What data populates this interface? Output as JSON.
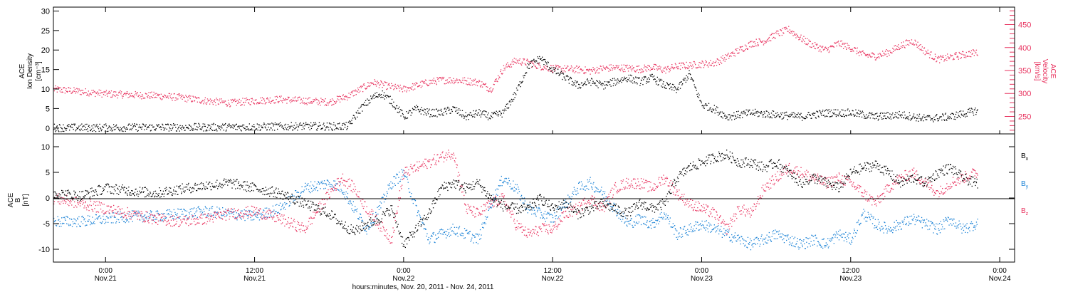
{
  "x_axis": {
    "title": "hours:minutes, Nov. 20, 2011 - Nov. 24, 2011",
    "ticks": [
      {
        "t": 0,
        "time": "0:00",
        "date": "Nov.21"
      },
      {
        "t": 12,
        "time": "12:00",
        "date": "Nov.21"
      },
      {
        "t": 24,
        "time": "0:00",
        "date": "Nov.22"
      },
      {
        "t": 36,
        "time": "12:00",
        "date": "Nov.22"
      },
      {
        "t": 48,
        "time": "0:00",
        "date": "Nov.23"
      },
      {
        "t": 60,
        "time": "12:00",
        "date": "Nov.23"
      },
      {
        "t": 72,
        "time": "0:00",
        "date": "Nov.24"
      }
    ],
    "range_hours_from_nov21": [
      -4.2,
      73.2
    ]
  },
  "chart_data": [
    {
      "type": "scatter",
      "panel": "top",
      "ylabel_left": [
        "ACE",
        "Ion Density",
        "[cm⁻³]"
      ],
      "ylabel_right": [
        "ACE",
        "Velocity",
        "[km/s]"
      ],
      "ylim_left": [
        -1.5,
        31
      ],
      "yticks_left": [
        0,
        5,
        10,
        15,
        20,
        25,
        30
      ],
      "ylim_right": [
        212,
        488
      ],
      "yticks_right": [
        250,
        300,
        350,
        400,
        450
      ],
      "series": [
        {
          "axis": "left",
          "color": "#000000",
          "x": [
            -4.2,
            -2,
            0,
            4,
            8,
            12,
            14,
            16,
            18,
            19.5,
            20.5,
            21.5,
            22.2,
            23,
            24,
            25,
            26,
            27,
            28,
            29,
            30,
            31,
            32,
            33,
            34,
            35,
            36,
            37,
            38,
            39,
            40,
            41,
            42,
            43,
            44,
            45,
            46,
            47,
            48,
            49,
            50,
            52,
            54,
            56,
            58,
            60,
            62,
            64,
            66,
            68,
            70
          ],
          "values": [
            0.2,
            0.2,
            0.2,
            0.3,
            0.3,
            0.4,
            0.5,
            0.6,
            0.5,
            0.6,
            5,
            8,
            9,
            7,
            3,
            5,
            4,
            4,
            5,
            3,
            4,
            3,
            4,
            9,
            16,
            18,
            15,
            13,
            11,
            12,
            11,
            12,
            13,
            12,
            13,
            11,
            10,
            14,
            6,
            5,
            3,
            4,
            3.5,
            3,
            4,
            4,
            3,
            3.5,
            2.5,
            3,
            4.5
          ]
        },
        {
          "axis": "right",
          "color": "#e8335f",
          "x": [
            -4.2,
            -2,
            0,
            2,
            4,
            6,
            8,
            10,
            12,
            14,
            16,
            18,
            19.5,
            20.5,
            21.5,
            22.2,
            23,
            24,
            25,
            26,
            27,
            28,
            29,
            30,
            31,
            32,
            33,
            34,
            35,
            36,
            37,
            38,
            39,
            40,
            41,
            42,
            43,
            44,
            45,
            46,
            47,
            48,
            49,
            50,
            51,
            52,
            53,
            54,
            55,
            56,
            57,
            58,
            59,
            60,
            61,
            62,
            63,
            64,
            65,
            66,
            67,
            68,
            69,
            70
          ],
          "values": [
            310,
            305,
            300,
            298,
            296,
            292,
            285,
            280,
            285,
            288,
            285,
            282,
            295,
            310,
            325,
            320,
            315,
            310,
            318,
            325,
            330,
            330,
            328,
            325,
            310,
            355,
            372,
            368,
            360,
            355,
            354,
            353,
            350,
            355,
            357,
            356,
            354,
            358,
            352,
            360,
            362,
            365,
            367,
            380,
            395,
            410,
            415,
            430,
            440,
            420,
            405,
            395,
            410,
            400,
            385,
            382,
            390,
            405,
            415,
            392,
            375,
            380,
            385,
            390
          ]
        }
      ]
    },
    {
      "type": "scatter",
      "panel": "bottom",
      "ylabel_left": [
        "ACE",
        "B",
        "[nT]"
      ],
      "ylim": [
        -12.5,
        12.5
      ],
      "yticks": [
        -10,
        -5,
        0,
        5,
        10
      ],
      "legend_position": "right",
      "series": [
        {
          "name": "Bx",
          "legend_main": "B",
          "legend_sub": "x",
          "color": "#000000",
          "x": [
            -4.2,
            -2,
            0,
            2,
            4,
            6,
            8,
            10,
            12,
            14,
            16,
            18,
            19,
            20,
            21,
            22,
            23,
            24,
            25,
            26,
            27,
            28,
            29,
            30,
            31,
            32,
            33,
            34,
            35,
            36,
            37,
            38,
            39,
            40,
            41,
            42,
            43,
            44,
            45,
            46,
            47,
            48,
            49,
            50,
            51,
            52,
            53,
            54,
            55,
            56,
            57,
            58,
            59,
            60,
            61,
            62,
            63,
            64,
            65,
            66,
            67,
            68,
            69,
            70
          ],
          "values": [
            1,
            0.5,
            2,
            1.5,
            1,
            1.8,
            2.5,
            3,
            2,
            1,
            -1,
            -3,
            -5,
            -6.5,
            -5,
            -4,
            -2,
            -9,
            -6,
            -3,
            2,
            3,
            2,
            3,
            0,
            -1.5,
            -2,
            -2,
            0,
            -2,
            -1,
            -3,
            -2,
            -1,
            -2,
            -3,
            -1,
            -2,
            -1,
            4,
            6,
            7,
            8,
            8.5,
            7,
            7,
            6,
            7,
            5,
            3,
            4,
            3,
            2,
            5,
            6,
            6.5,
            5,
            3,
            4,
            3,
            5,
            6,
            4,
            3
          ]
        },
        {
          "name": "By",
          "legend_main": "B",
          "legend_sub": "y",
          "color": "#1a82d6",
          "x": [
            -4.2,
            -2,
            0,
            2,
            4,
            6,
            8,
            10,
            12,
            14,
            16,
            18,
            19,
            20,
            21,
            22,
            23,
            24,
            25,
            26,
            27,
            28,
            29,
            30,
            31,
            32,
            33,
            34,
            35,
            36,
            37,
            38,
            39,
            40,
            41,
            42,
            43,
            44,
            45,
            46,
            47,
            48,
            49,
            50,
            51,
            52,
            53,
            54,
            55,
            56,
            57,
            58,
            59,
            60,
            61,
            62,
            63,
            64,
            65,
            66,
            67,
            68,
            69,
            70
          ],
          "values": [
            -4.5,
            -4.5,
            -4,
            -3.5,
            -3.5,
            -3,
            -2.5,
            -3,
            -3.5,
            -2,
            2,
            3,
            2,
            -2,
            -6,
            -2,
            3,
            5,
            -2,
            -8,
            -7,
            -6,
            -7,
            -8,
            -1,
            4,
            2,
            -2,
            -3,
            -4,
            -1,
            2,
            3,
            1,
            -2,
            -5,
            -4,
            -5,
            -3,
            -7,
            -6,
            -5,
            -6,
            -7,
            -8,
            -9,
            -8,
            -7,
            -8,
            -9,
            -8,
            -9,
            -7,
            -8,
            -3,
            -5,
            -6,
            -5,
            -4,
            -5,
            -6,
            -4,
            -6,
            -5
          ]
        },
        {
          "name": "Bz",
          "legend_main": "B",
          "legend_sub": "z",
          "color": "#e8335f",
          "x": [
            -4.2,
            -2,
            0,
            2,
            4,
            6,
            8,
            10,
            12,
            14,
            16,
            18,
            19,
            20,
            21,
            22,
            23,
            24,
            25,
            26,
            27,
            28,
            29,
            30,
            31,
            32,
            33,
            34,
            35,
            36,
            37,
            38,
            39,
            40,
            41,
            42,
            43,
            44,
            45,
            46,
            47,
            48,
            49,
            50,
            51,
            52,
            53,
            54,
            55,
            56,
            57,
            58,
            59,
            60,
            61,
            62,
            63,
            64,
            65,
            66,
            67,
            68,
            69,
            70
          ],
          "values": [
            0,
            -1,
            -2,
            -3,
            -4,
            -4.5,
            -4,
            -3,
            -2.5,
            -4,
            -6,
            1,
            4,
            2,
            -2,
            -5,
            -8,
            5,
            6,
            7,
            8,
            9,
            -2,
            -3,
            -1,
            0,
            -5,
            -7,
            -6,
            -6,
            -3,
            -2,
            0,
            -2,
            2,
            3,
            3,
            2,
            4,
            1,
            -1,
            -2,
            -3,
            -6,
            -2,
            -3,
            2,
            4,
            6,
            5,
            4,
            3,
            4,
            3,
            1,
            -1,
            2,
            4,
            5,
            3,
            1,
            3,
            4,
            5
          ]
        }
      ]
    }
  ]
}
